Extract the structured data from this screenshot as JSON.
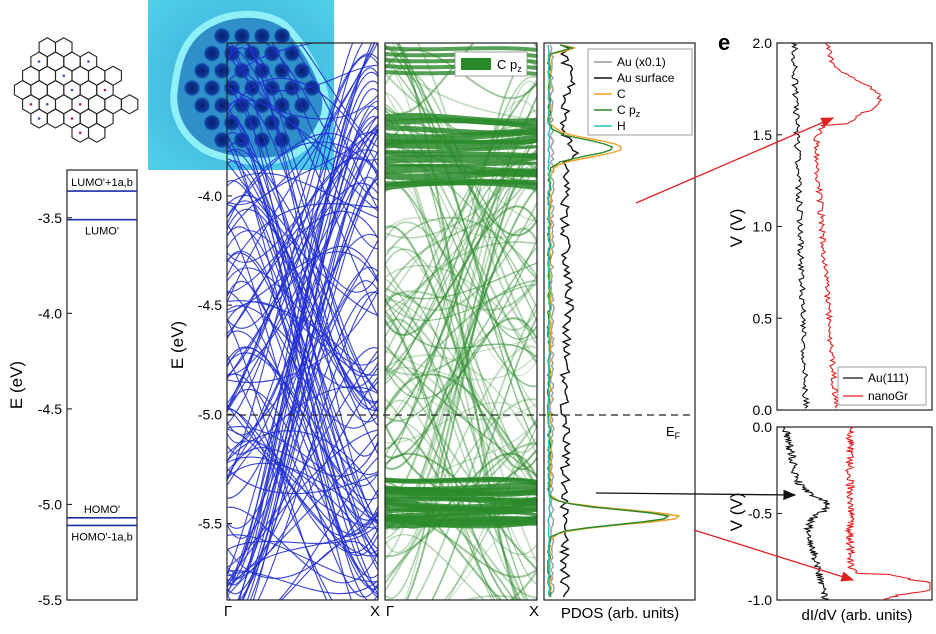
{
  "panel_letter": "e",
  "molecule_image": "nanographene-structure-and-stm-image",
  "chart_data": [
    {
      "type": "line",
      "subtype": "energy-levels",
      "ylabel": "E (eV)",
      "ylim": [
        -5.5,
        -3.25
      ],
      "yticks": [
        "-3.5",
        "-4.0",
        "-4.5",
        "-5.0",
        "-5.5"
      ],
      "ytick_values": [
        -3.5,
        -4.0,
        -4.5,
        -5.0,
        -5.5
      ],
      "levels": [
        {
          "label": "LUMO'+1a,b",
          "energy": -3.36
        },
        {
          "label": "LUMO'",
          "energy": -3.51
        },
        {
          "label": "HOMO'",
          "energy": -5.07
        },
        {
          "label": "HOMO'-1a,b",
          "energy": -5.11
        }
      ],
      "level_color": "#1f2fa8"
    },
    {
      "type": "line",
      "subtype": "band-structure",
      "ylabel": "E (eV)",
      "ylim": [
        -5.85,
        -3.3
      ],
      "yticks": [
        "-4.0",
        "-4.5",
        "-5.0",
        "-5.5"
      ],
      "ytick_values": [
        -4.0,
        -4.5,
        -5.0,
        -5.5
      ],
      "xticks": [
        "Γ",
        "X"
      ],
      "series_color": "#2230d0",
      "fermi_level": -4.85
    },
    {
      "type": "line",
      "subtype": "fat-bands",
      "legend": [
        "C p",
        "z"
      ],
      "legend_position": "top-right",
      "xticks": [
        "Γ",
        "X"
      ],
      "series_color": "#2a8a2a",
      "fat_band_regions": [
        [
          -3.65,
          -3.95
        ],
        [
          -5.3,
          -5.5
        ]
      ]
    },
    {
      "type": "line",
      "subtype": "pdos",
      "xlabel": "PDOS (arb. units)",
      "fermi_label": [
        "E",
        "F"
      ],
      "legend_position": "top-right",
      "series": [
        {
          "name": "Au (x0.1)",
          "color": "#9a9a9a"
        },
        {
          "name": "Au surface",
          "color": "#111111"
        },
        {
          "name": "C",
          "color": "#f0a020"
        },
        {
          "name": "C p",
          "subscript": "z",
          "color": "#2a8a2a"
        },
        {
          "name": "H",
          "color": "#20c0c0"
        }
      ],
      "peaks": [
        {
          "series": "C",
          "energy": -3.78
        },
        {
          "series": "C",
          "energy": -5.47
        }
      ]
    },
    {
      "type": "line",
      "subtype": "sts-positive-bias",
      "ylabel": "V (V)",
      "ylim": [
        0.0,
        2.0
      ],
      "yticks": [
        "0.0",
        "0.5",
        "1.0",
        "1.5",
        "2.0"
      ],
      "ytick_values": [
        0.0,
        0.5,
        1.0,
        1.5,
        2.0
      ],
      "legend_position": "bottom-right",
      "series": [
        {
          "name": "Au(111)",
          "color": "#111111"
        },
        {
          "name": "nanoGr",
          "color": "#e02020"
        }
      ],
      "peaks": [
        {
          "series": "nanoGr",
          "voltage": 1.7
        }
      ]
    },
    {
      "type": "line",
      "subtype": "sts-negative-bias",
      "ylabel": "V (V)",
      "xlabel": "dI/dV (arb. units)",
      "ylim": [
        -1.0,
        0.0
      ],
      "yticks": [
        "0.0",
        "-0.5",
        "-1.0"
      ],
      "ytick_values": [
        0.0,
        -0.5,
        -1.0
      ],
      "series": [
        {
          "name": "Au(111)",
          "color": "#111111"
        },
        {
          "name": "nanoGr",
          "color": "#e02020"
        }
      ],
      "peaks": [
        {
          "series": "Au(111)",
          "voltage": -0.45
        },
        {
          "series": "nanoGr",
          "voltage": -0.92
        }
      ]
    }
  ]
}
